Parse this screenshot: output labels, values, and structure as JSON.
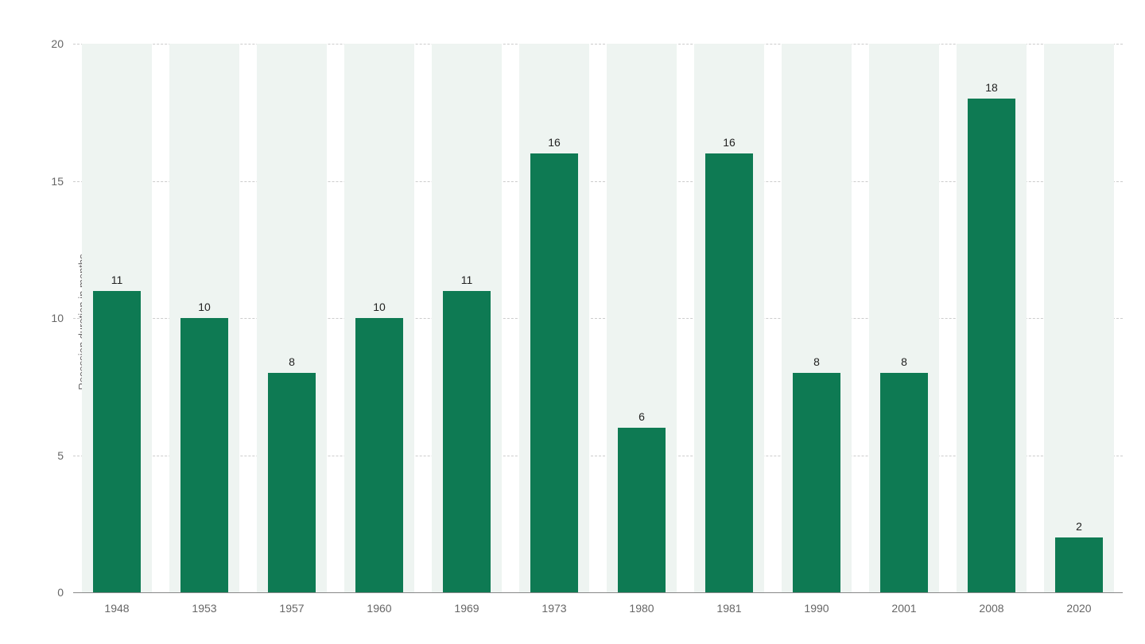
{
  "chart": {
    "type": "bar",
    "y_axis_label": "Recession duration in months",
    "y_min": 0,
    "y_max": 20,
    "y_ticks": [
      0,
      5,
      10,
      15,
      20
    ],
    "categories": [
      "1948",
      "1953",
      "1957",
      "1960",
      "1969",
      "1973",
      "1980",
      "1981",
      "1990",
      "2001",
      "2008",
      "2020"
    ],
    "values": [
      11,
      10,
      8,
      10,
      11,
      16,
      6,
      16,
      8,
      8,
      18,
      2
    ],
    "bar_color": "#0e7a53",
    "slot_bg_color": "#eef4f1",
    "grid_color": "#cccccc",
    "baseline_color": "#888888",
    "background_color": "#ffffff",
    "label_fontsize": 14,
    "axis_label_fontsize": 13,
    "text_color": "#666666",
    "value_text_color": "#222222",
    "bar_width_ratio": 0.54,
    "slot_bg_width_ratio": 0.8
  }
}
